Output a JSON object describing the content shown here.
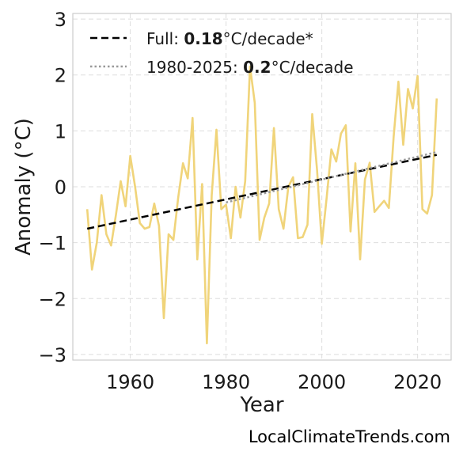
{
  "chart_data": {
    "type": "line",
    "title": "",
    "xlabel": "Year",
    "ylabel": "Anomaly (°C)",
    "xlim": [
      1948,
      2027
    ],
    "ylim": [
      -3.1,
      3.1
    ],
    "xticks": [
      1960,
      1980,
      2000,
      2020
    ],
    "xtick_labels": [
      "1960",
      "1980",
      "2000",
      "2020"
    ],
    "yticks": [
      3,
      2,
      1,
      0,
      -1,
      -2,
      -3
    ],
    "ytick_labels": [
      "3",
      "2",
      "1",
      "0",
      "−1",
      "−2",
      "−3"
    ],
    "grid": true,
    "legend_position": "top-left",
    "series": [
      {
        "kind": "anomaly",
        "color": "#f0d47a",
        "x": [
          1951,
          1952,
          1953,
          1954,
          1955,
          1956,
          1957,
          1958,
          1959,
          1960,
          1961,
          1962,
          1963,
          1964,
          1965,
          1966,
          1967,
          1968,
          1969,
          1970,
          1971,
          1972,
          1973,
          1974,
          1975,
          1976,
          1977,
          1978,
          1979,
          1980,
          1981,
          1982,
          1983,
          1984,
          1985,
          1986,
          1987,
          1988,
          1989,
          1990,
          1991,
          1992,
          1993,
          1994,
          1995,
          1996,
          1997,
          1998,
          1999,
          2000,
          2001,
          2002,
          2003,
          2004,
          2005,
          2006,
          2007,
          2008,
          2009,
          2010,
          2011,
          2012,
          2013,
          2014,
          2015,
          2016,
          2017,
          2018,
          2019,
          2020,
          2021,
          2022,
          2023,
          2024
        ],
        "y": [
          -0.4,
          -1.48,
          -1.0,
          -0.15,
          -0.85,
          -1.05,
          -0.5,
          0.1,
          -0.35,
          0.55,
          0.0,
          -0.65,
          -0.75,
          -0.72,
          -0.3,
          -0.7,
          -2.35,
          -0.85,
          -0.95,
          -0.2,
          0.42,
          0.15,
          1.23,
          -1.3,
          0.05,
          -2.8,
          -0.15,
          1.02,
          -0.4,
          -0.32,
          -0.92,
          0.0,
          -0.55,
          0.1,
          2.15,
          1.5,
          -0.95,
          -0.55,
          -0.3,
          1.05,
          -0.4,
          -0.75,
          0.0,
          0.17,
          -0.92,
          -0.9,
          -0.68,
          1.3,
          0.3,
          -1.02,
          -0.2,
          0.67,
          0.45,
          0.95,
          1.1,
          -0.8,
          0.42,
          -1.3,
          0.13,
          0.43,
          -0.45,
          -0.35,
          -0.25,
          -0.38,
          0.9,
          1.88,
          0.75,
          1.75,
          1.4,
          1.98,
          -0.4,
          -0.48,
          -0.15,
          1.58
        ]
      },
      {
        "kind": "trend",
        "name": "Full",
        "rate": "0.18",
        "unit": "°C/decade*",
        "style": "dashed",
        "color": "#000000",
        "x": [
          1951,
          2024
        ],
        "y": [
          -0.75,
          0.57
        ]
      },
      {
        "kind": "trend",
        "name": "1980-2025",
        "rate": "0.2",
        "unit": "°C/decade",
        "style": "dotted",
        "color": "#999999",
        "x": [
          1980,
          2024
        ],
        "y": [
          -0.28,
          0.62
        ]
      }
    ]
  },
  "credit": "LocalClimateTrends.com"
}
